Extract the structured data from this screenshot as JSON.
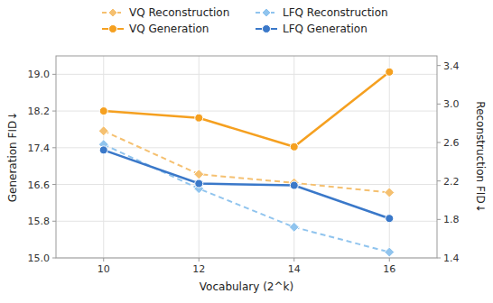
{
  "chart_data": {
    "type": "line",
    "xlabel": "Vocabulary (2^k)",
    "ylabel": "Generation FID↓",
    "y2label": "Reconstruction FID↓",
    "x": [
      10,
      12,
      14,
      16
    ],
    "xlim": [
      9,
      17
    ],
    "xticks": [
      10,
      12,
      14,
      16
    ],
    "ylim": [
      15.0,
      19.4
    ],
    "yticks": [
      {
        "value": 15.0,
        "label": "15.0"
      },
      15.8,
      16.6,
      17.4,
      18.2,
      {
        "value": 19.0,
        "label": "19.0"
      }
    ],
    "y2lim": [
      1.4,
      3.5
    ],
    "y2ticks": [
      1.4,
      1.8,
      2.2,
      2.6,
      {
        "value": 3.0,
        "label": "3.0"
      },
      3.4
    ],
    "grid": true,
    "legend": "top",
    "series": [
      {
        "name": "VQ Reconstruction",
        "color": "#F5C070",
        "axis": "y2",
        "marker": "diamond",
        "line_style": "dashed",
        "values": [
          2.72,
          2.27,
          2.18,
          2.08
        ]
      },
      {
        "name": "VQ Generation",
        "color": "#F5A020",
        "marker": "circle",
        "line_style": "solid",
        "values": [
          18.2,
          18.05,
          17.42,
          19.05
        ]
      },
      {
        "name": "LFQ Reconstruction",
        "color": "#90C4EE",
        "axis": "y2",
        "marker": "diamond",
        "line_style": "dashed",
        "values": [
          2.58,
          2.12,
          1.72,
          1.46
        ]
      },
      {
        "name": "LFQ Generation",
        "color": "#3A78C9",
        "marker": "circle",
        "line_style": "solid",
        "values": [
          17.35,
          16.62,
          16.58,
          15.86
        ]
      }
    ]
  }
}
